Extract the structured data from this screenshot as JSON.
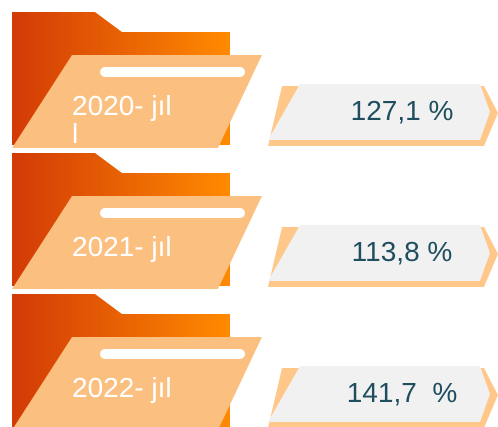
{
  "items": [
    {
      "label": "2020- jıl\nl",
      "value": "127,1 %"
    },
    {
      "label": "2021- jıl",
      "value": "113,8 %"
    },
    {
      "label": "2022- jıl",
      "value": "141,7  %"
    }
  ]
}
